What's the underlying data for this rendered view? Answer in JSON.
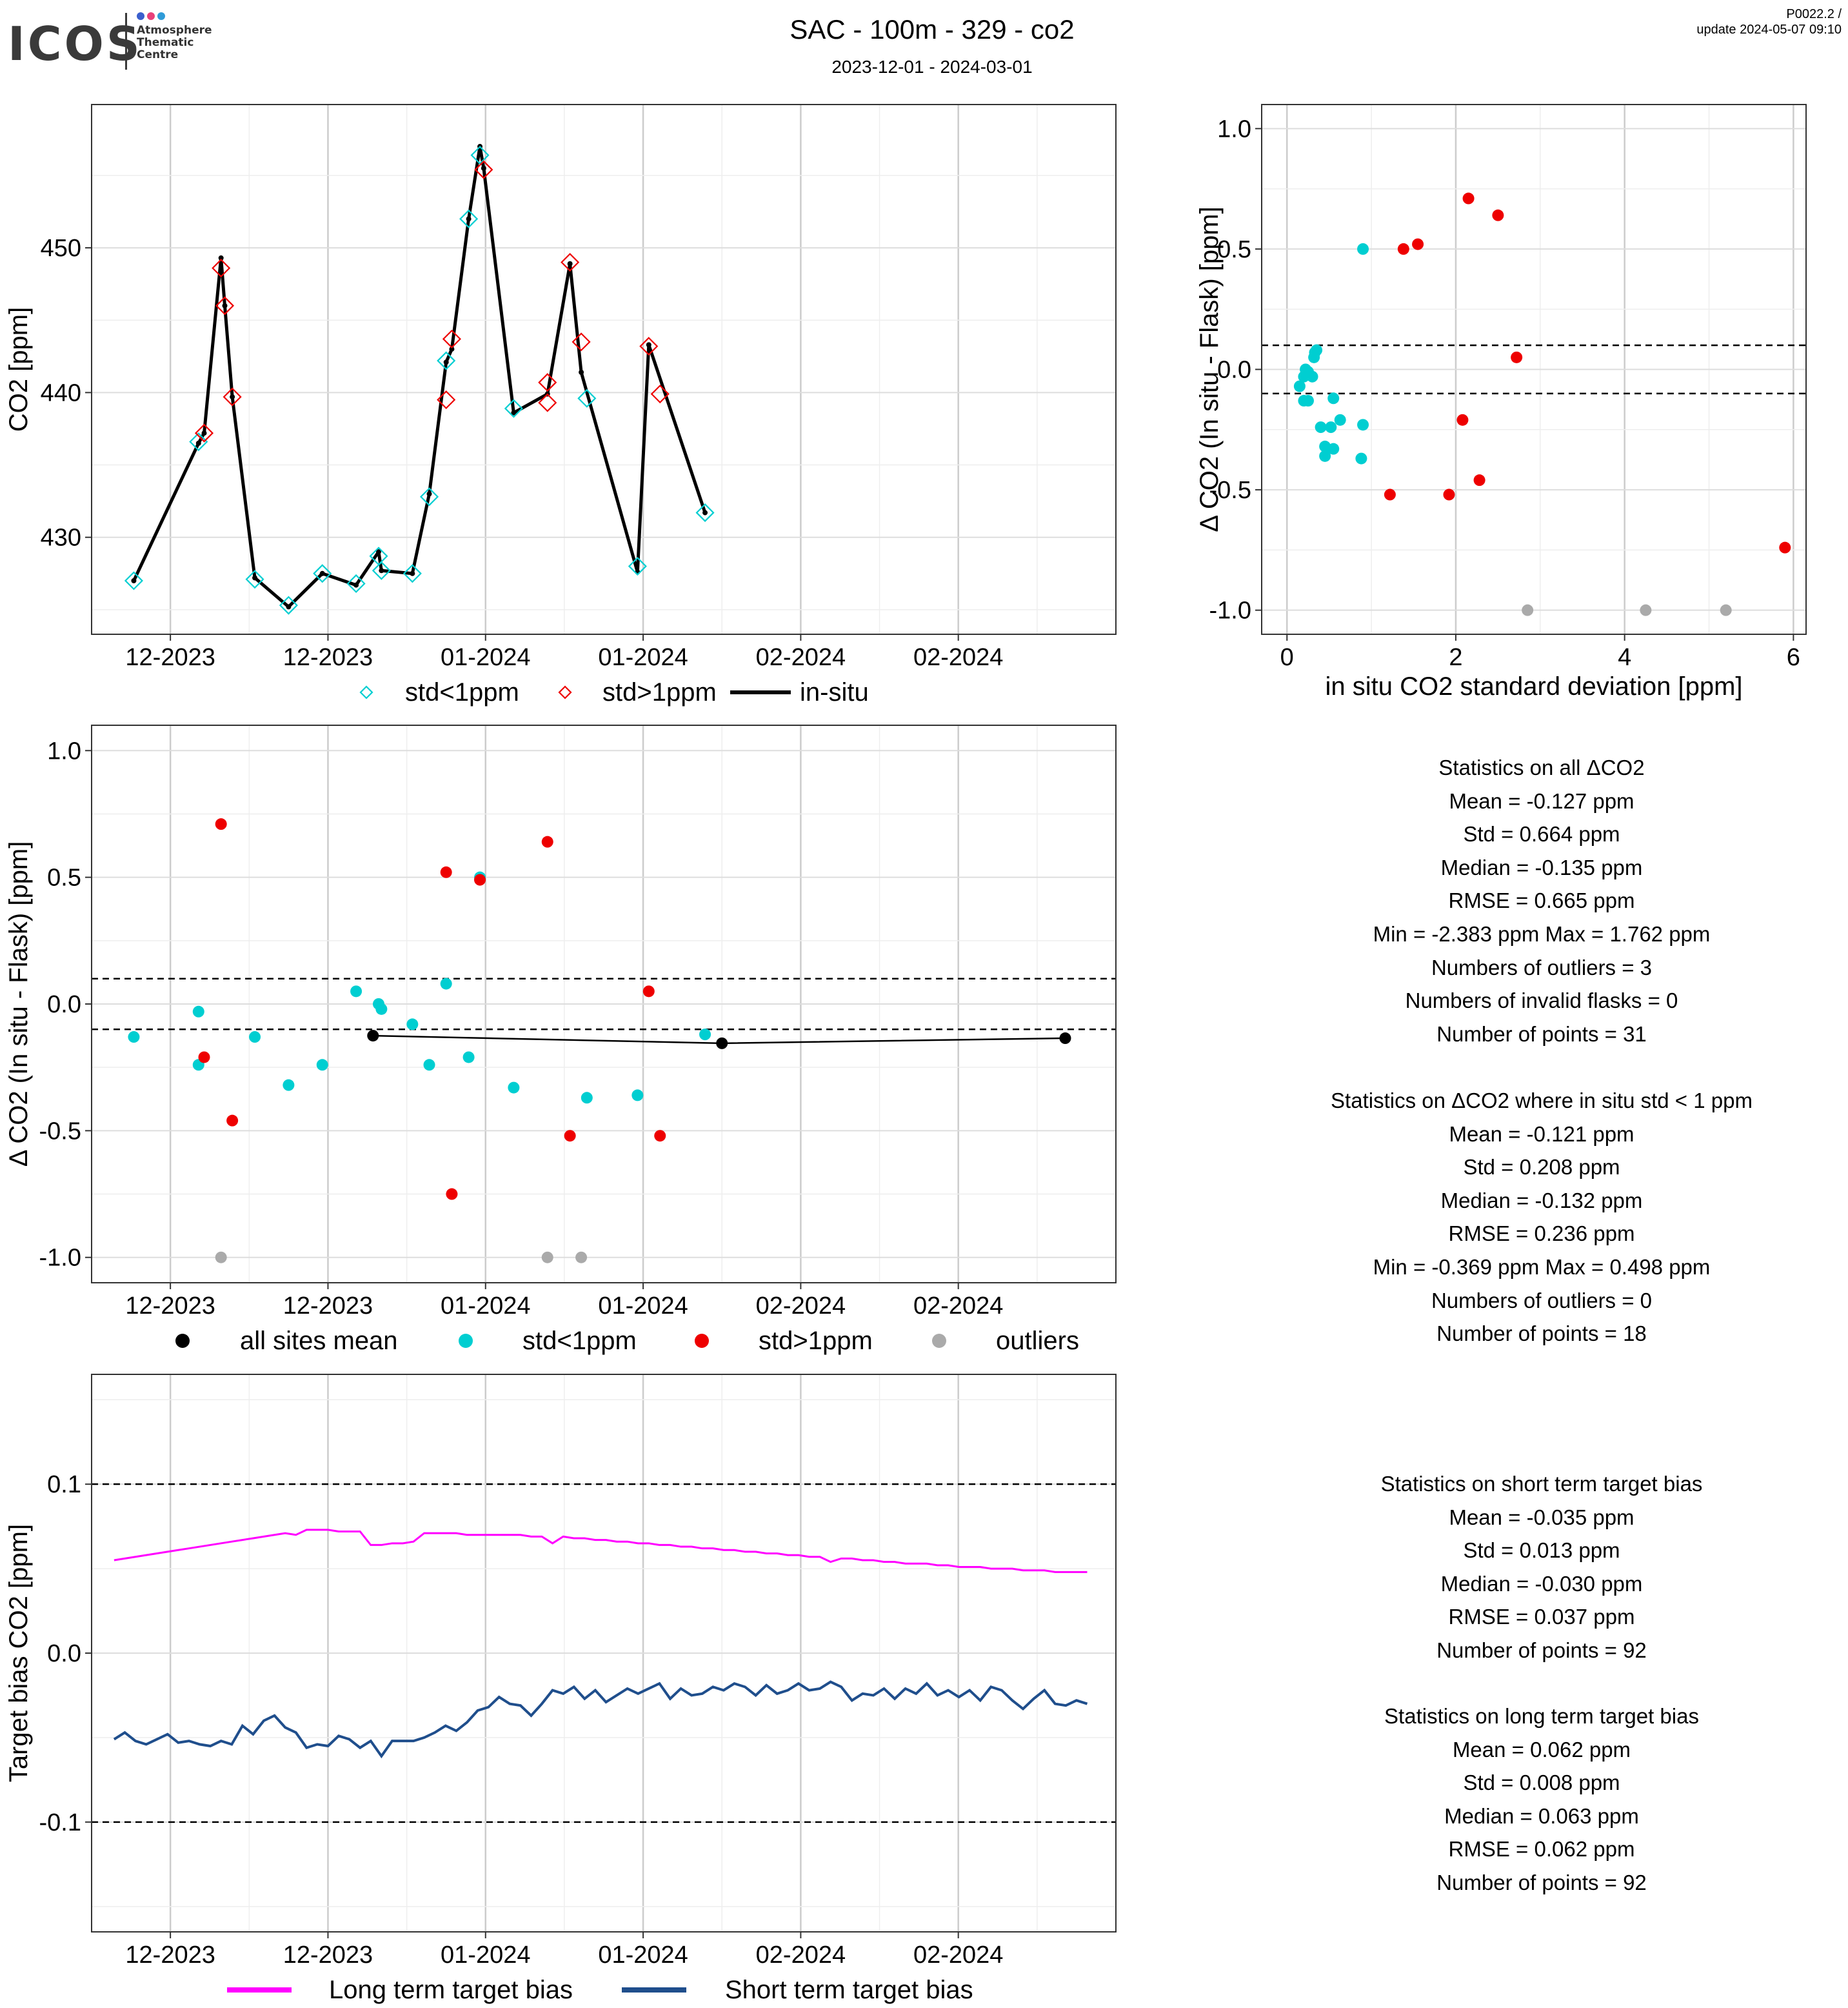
{
  "header": {
    "logo_text": "ICOS",
    "logo_subtitle": [
      "Atmosphere",
      "Thematic",
      "Centre"
    ],
    "title": "SAC - 100m - 329 - co2",
    "subtitle": "2023-12-01 - 2024-03-01",
    "version": "P0022.2 /",
    "update": "update  2024-05-07 09:10"
  },
  "colors": {
    "cyan": "#00CED1",
    "red": "#EE0000",
    "gray": "#AAAAAA",
    "black": "#000000",
    "magenta": "#FF00FF",
    "navy": "#1F4E8C"
  },
  "chart_data": [
    {
      "id": "timeseries",
      "type": "line",
      "ylabel": "CO2 [ppm]",
      "xlabel": "",
      "xlim": [
        "2023-12-01",
        "2024-03-01"
      ],
      "ylim": [
        423.3,
        459.9
      ],
      "yticks": [
        430,
        440,
        450
      ],
      "xtick_dates": [
        "2023-12-08",
        "2023-12-22",
        "2024-01-05",
        "2024-01-19",
        "2024-02-02",
        "2024-02-16"
      ],
      "xtick_labels": [
        "12-2023",
        "12-2023",
        "01-2024",
        "01-2024",
        "02-2024",
        "02-2024"
      ],
      "legend": [
        "std<1ppm",
        "std>1ppm",
        "in-situ"
      ],
      "legend_placement": "bottom",
      "insitu": [
        [
          "2023-12-04T18:00",
          427.0
        ],
        [
          "2023-12-10T12:00",
          436.5
        ],
        [
          "2023-12-11T00:00",
          437.2
        ],
        [
          "2023-12-12T12:00",
          449.3
        ],
        [
          "2023-12-12T20:00",
          446.0
        ],
        [
          "2023-12-13T12:00",
          439.7
        ],
        [
          "2023-12-15T12:00",
          427.2
        ],
        [
          "2023-12-18T12:00",
          425.2
        ],
        [
          "2023-12-21T12:00",
          427.5
        ],
        [
          "2023-12-24T12:00",
          426.7
        ],
        [
          "2023-12-26T12:00",
          429.0
        ],
        [
          "2023-12-26T18:00",
          427.7
        ],
        [
          "2023-12-29T12:00",
          427.5
        ],
        [
          "2023-12-31T00:00",
          433.0
        ],
        [
          "2024-01-01T12:00",
          442.1
        ],
        [
          "2024-01-02T00:00",
          443.0
        ],
        [
          "2024-01-03T12:00",
          452.0
        ],
        [
          "2024-01-04T12:00",
          457.0
        ],
        [
          "2024-01-04T20:00",
          455.5
        ],
        [
          "2024-01-07T12:00",
          438.6
        ],
        [
          "2024-01-10T12:00",
          439.9
        ],
        [
          "2024-01-12T12:00",
          448.9
        ],
        [
          "2024-01-13T12:00",
          441.4
        ],
        [
          "2024-01-18T12:00",
          427.6
        ],
        [
          "2024-01-19T12:00",
          443.3
        ],
        [
          "2024-01-24T12:00",
          431.7
        ]
      ],
      "flasks_low": [
        [
          "2023-12-04T18:00",
          427.0
        ],
        [
          "2023-12-10T12:00",
          436.6
        ],
        [
          "2023-12-15T12:00",
          427.1
        ],
        [
          "2023-12-18T12:00",
          425.3
        ],
        [
          "2023-12-21T12:00",
          427.5
        ],
        [
          "2023-12-24T12:00",
          426.8
        ],
        [
          "2023-12-26T12:00",
          428.7
        ],
        [
          "2023-12-26T18:00",
          427.7
        ],
        [
          "2023-12-29T12:00",
          427.5
        ],
        [
          "2023-12-31T00:00",
          432.8
        ],
        [
          "2024-01-01T12:00",
          442.2
        ],
        [
          "2024-01-03T12:00",
          452.0
        ],
        [
          "2024-01-04T12:00",
          456.4
        ],
        [
          "2024-01-07T12:00",
          438.9
        ],
        [
          "2024-01-14T00:00",
          439.6
        ],
        [
          "2024-01-18T12:00",
          428.0
        ],
        [
          "2024-01-24T12:00",
          431.7
        ]
      ],
      "flasks_high": [
        [
          "2023-12-11T00:00",
          437.2
        ],
        [
          "2023-12-12T12:00",
          448.6
        ],
        [
          "2023-12-12T20:00",
          446.0
        ],
        [
          "2023-12-13T12:00",
          439.7
        ],
        [
          "2024-01-01T12:00",
          439.5
        ],
        [
          "2024-01-02T00:00",
          443.7
        ],
        [
          "2024-01-04T20:00",
          455.4
        ],
        [
          "2024-01-10T12:00",
          440.7
        ],
        [
          "2024-01-10T12:00",
          439.3
        ],
        [
          "2024-01-12T12:00",
          449.0
        ],
        [
          "2024-01-13T12:00",
          443.5
        ],
        [
          "2024-01-19T12:00",
          443.2
        ],
        [
          "2024-01-20T12:00",
          439.9
        ]
      ]
    },
    {
      "id": "scatter_std",
      "type": "scatter",
      "xlabel": "in situ CO2 standard deviation [ppm]",
      "ylabel": "Δ CO2 (In situ - Flask) [ppm]",
      "xlim": [
        -0.3,
        6.15
      ],
      "ylim": [
        -1.1,
        1.1
      ],
      "xticks": [
        0,
        2,
        4,
        6
      ],
      "yticks": [
        -1.0,
        -0.5,
        0.0,
        0.5,
        1.0
      ],
      "yticklabels": [
        "-1.0",
        "-0.5",
        "0.0",
        "0.5",
        "1.0"
      ],
      "hlines": [
        0.1,
        -0.1
      ],
      "cyan": [
        [
          0.9,
          0.5
        ],
        [
          0.35,
          0.08
        ],
        [
          0.33,
          0.07
        ],
        [
          0.32,
          0.05
        ],
        [
          0.22,
          0.0
        ],
        [
          0.25,
          -0.01
        ],
        [
          0.3,
          -0.03
        ],
        [
          0.2,
          -0.03
        ],
        [
          0.15,
          -0.07
        ],
        [
          0.2,
          -0.13
        ],
        [
          0.25,
          -0.13
        ],
        [
          0.55,
          -0.12
        ],
        [
          0.63,
          -0.21
        ],
        [
          0.4,
          -0.24
        ],
        [
          0.52,
          -0.24
        ],
        [
          0.9,
          -0.23
        ],
        [
          0.45,
          -0.32
        ],
        [
          0.55,
          -0.33
        ],
        [
          0.45,
          -0.36
        ],
        [
          0.88,
          -0.37
        ]
      ],
      "red": [
        [
          2.15,
          0.71
        ],
        [
          2.5,
          0.64
        ],
        [
          1.55,
          0.52
        ],
        [
          1.38,
          0.5
        ],
        [
          2.72,
          0.05
        ],
        [
          2.08,
          -0.21
        ],
        [
          2.28,
          -0.46
        ],
        [
          1.22,
          -0.52
        ],
        [
          1.92,
          -0.52
        ],
        [
          5.9,
          -0.74
        ]
      ],
      "gray": [
        [
          2.85,
          -1.0
        ],
        [
          4.25,
          -1.0
        ],
        [
          5.2,
          -1.0
        ]
      ]
    },
    {
      "id": "delta_timeseries",
      "type": "scatter",
      "xlabel": "",
      "ylabel": "Δ CO2 (In situ - Flask) [ppm]",
      "xlim": [
        "2023-12-01",
        "2024-03-01"
      ],
      "ylim": [
        -1.1,
        1.1
      ],
      "yticks": [
        -1.0,
        -0.5,
        0.0,
        0.5,
        1.0
      ],
      "yticklabels": [
        "-1.0",
        "-0.5",
        "0.0",
        "0.5",
        "1.0"
      ],
      "hlines": [
        0.1,
        -0.1
      ],
      "xtick_dates": [
        "2023-12-08",
        "2023-12-22",
        "2024-01-05",
        "2024-01-19",
        "2024-02-02",
        "2024-02-16"
      ],
      "xtick_labels": [
        "12-2023",
        "12-2023",
        "01-2024",
        "01-2024",
        "02-2024",
        "02-2024"
      ],
      "legend": [
        "all sites mean",
        "std<1ppm",
        "std>1ppm",
        "outliers"
      ],
      "legend_placement": "bottom",
      "mean": [
        [
          "2023-12-26T00:00",
          -0.125
        ],
        [
          "2024-01-26T00:00",
          -0.155
        ],
        [
          "2024-02-25T12:00",
          -0.135
        ]
      ],
      "cyan": [
        [
          "2023-12-04T18:00",
          -0.13
        ],
        [
          "2023-12-10T12:00",
          -0.03
        ],
        [
          "2023-12-10T12:00",
          -0.24
        ],
        [
          "2023-12-15T12:00",
          -0.13
        ],
        [
          "2023-12-18T12:00",
          -0.32
        ],
        [
          "2023-12-21T12:00",
          -0.24
        ],
        [
          "2023-12-24T12:00",
          0.05
        ],
        [
          "2023-12-26T12:00",
          0.0
        ],
        [
          "2023-12-26T18:00",
          -0.02
        ],
        [
          "2023-12-29T12:00",
          -0.08
        ],
        [
          "2023-12-31T00:00",
          -0.24
        ],
        [
          "2024-01-01T12:00",
          0.08
        ],
        [
          "2024-01-03T12:00",
          -0.21
        ],
        [
          "2024-01-04T12:00",
          0.5
        ],
        [
          "2024-01-07T12:00",
          -0.33
        ],
        [
          "2024-01-14T00:00",
          -0.37
        ],
        [
          "2024-01-18T12:00",
          -0.36
        ],
        [
          "2024-01-24T12:00",
          -0.12
        ]
      ],
      "red": [
        [
          "2023-12-12T12:00",
          0.71
        ],
        [
          "2023-12-11T00:00",
          -0.21
        ],
        [
          "2023-12-13T12:00",
          -0.46
        ],
        [
          "2024-01-01T12:00",
          0.52
        ],
        [
          "2024-01-02T00:00",
          -0.75
        ],
        [
          "2024-01-04T12:00",
          0.49
        ],
        [
          "2024-01-10T12:00",
          0.64
        ],
        [
          "2024-01-12T12:00",
          -0.52
        ],
        [
          "2024-01-19T12:00",
          0.05
        ],
        [
          "2024-01-20T12:00",
          -0.52
        ]
      ],
      "gray": [
        [
          "2023-12-12T12:00",
          -1.0
        ],
        [
          "2024-01-10T12:00",
          -1.0
        ],
        [
          "2024-01-13T12:00",
          -1.0
        ]
      ]
    },
    {
      "id": "target_bias",
      "type": "line",
      "xlabel": "",
      "ylabel": "Target bias CO2 [ppm]",
      "xlim": [
        "2023-12-01",
        "2024-03-01"
      ],
      "ylim": [
        -0.165,
        0.165
      ],
      "yticks": [
        -0.1,
        0.0,
        0.1
      ],
      "yticklabels": [
        "-0.1",
        "0.0",
        "0.1"
      ],
      "hlines": [
        0.1,
        -0.1
      ],
      "xtick_dates": [
        "2023-12-08",
        "2023-12-22",
        "2024-01-05",
        "2024-01-19",
        "2024-02-02",
        "2024-02-16"
      ],
      "xtick_labels": [
        "12-2023",
        "12-2023",
        "01-2024",
        "01-2024",
        "02-2024",
        "02-2024"
      ],
      "legend": [
        "Long term target bias",
        "Short term target bias"
      ],
      "legend_placement": "bottom",
      "x_start": "2023-12-03",
      "x_step_days": 0.95,
      "long_term": [
        0.055,
        0.056,
        0.057,
        0.058,
        0.059,
        0.06,
        0.061,
        0.062,
        0.063,
        0.064,
        0.065,
        0.066,
        0.067,
        0.068,
        0.069,
        0.07,
        0.071,
        0.07,
        0.073,
        0.073,
        0.073,
        0.072,
        0.072,
        0.072,
        0.064,
        0.064,
        0.065,
        0.065,
        0.066,
        0.071,
        0.071,
        0.071,
        0.071,
        0.07,
        0.07,
        0.07,
        0.07,
        0.07,
        0.07,
        0.069,
        0.069,
        0.065,
        0.069,
        0.068,
        0.068,
        0.067,
        0.067,
        0.066,
        0.066,
        0.065,
        0.065,
        0.064,
        0.064,
        0.063,
        0.063,
        0.062,
        0.062,
        0.061,
        0.061,
        0.06,
        0.06,
        0.059,
        0.059,
        0.058,
        0.058,
        0.057,
        0.057,
        0.054,
        0.056,
        0.056,
        0.055,
        0.055,
        0.054,
        0.054,
        0.053,
        0.053,
        0.053,
        0.052,
        0.052,
        0.051,
        0.051,
        0.051,
        0.05,
        0.05,
        0.05,
        0.049,
        0.049,
        0.049,
        0.048,
        0.048,
        0.048,
        0.048
      ],
      "short_term": [
        -0.051,
        -0.047,
        -0.052,
        -0.054,
        -0.051,
        -0.048,
        -0.053,
        -0.052,
        -0.054,
        -0.055,
        -0.052,
        -0.054,
        -0.043,
        -0.048,
        -0.04,
        -0.037,
        -0.044,
        -0.047,
        -0.056,
        -0.054,
        -0.055,
        -0.049,
        -0.051,
        -0.056,
        -0.052,
        -0.061,
        -0.052,
        -0.052,
        -0.052,
        -0.05,
        -0.047,
        -0.043,
        -0.046,
        -0.041,
        -0.034,
        -0.032,
        -0.026,
        -0.03,
        -0.031,
        -0.037,
        -0.03,
        -0.022,
        -0.024,
        -0.02,
        -0.027,
        -0.022,
        -0.029,
        -0.025,
        -0.021,
        -0.024,
        -0.021,
        -0.018,
        -0.027,
        -0.021,
        -0.025,
        -0.024,
        -0.02,
        -0.022,
        -0.018,
        -0.02,
        -0.025,
        -0.019,
        -0.024,
        -0.022,
        -0.018,
        -0.022,
        -0.021,
        -0.017,
        -0.02,
        -0.028,
        -0.024,
        -0.025,
        -0.021,
        -0.027,
        -0.021,
        -0.024,
        -0.018,
        -0.025,
        -0.022,
        -0.026,
        -0.022,
        -0.028,
        -0.02,
        -0.022,
        -0.028,
        -0.033,
        -0.027,
        -0.022,
        -0.03,
        -0.031,
        -0.028,
        -0.03
      ]
    }
  ],
  "stats": {
    "all": [
      "Statistics on all ΔCO2",
      "Mean =  -0.127 ppm",
      "Std =  0.664 ppm",
      "Median =  -0.135 ppm",
      "RMSE =  0.665 ppm",
      "Min =  -2.383 ppm Max =  1.762 ppm",
      "Numbers of outliers =  3",
      "Numbers of invalid flasks =  0",
      "Number of points =  31"
    ],
    "lowstd": [
      "Statistics on ΔCO2 where in situ std < 1 ppm",
      "Mean =  -0.121 ppm",
      "Std =  0.208 ppm",
      "Median =  -0.132 ppm",
      "RMSE =  0.236 ppm",
      "Min =  -0.369 ppm Max =  0.498 ppm",
      "Numbers of outliers =  0",
      "Number of points =  18"
    ],
    "short": [
      "Statistics on short term target bias",
      "Mean =  -0.035 ppm",
      "Std =  0.013 ppm",
      "Median =  -0.030 ppm",
      "RMSE =  0.037 ppm",
      "Number of points =  92"
    ],
    "long": [
      "Statistics on long term target bias",
      "Mean =  0.062 ppm",
      "Std =  0.008 ppm",
      "Median =  0.063 ppm",
      "RMSE =  0.062 ppm",
      "Number of points =  92"
    ]
  }
}
